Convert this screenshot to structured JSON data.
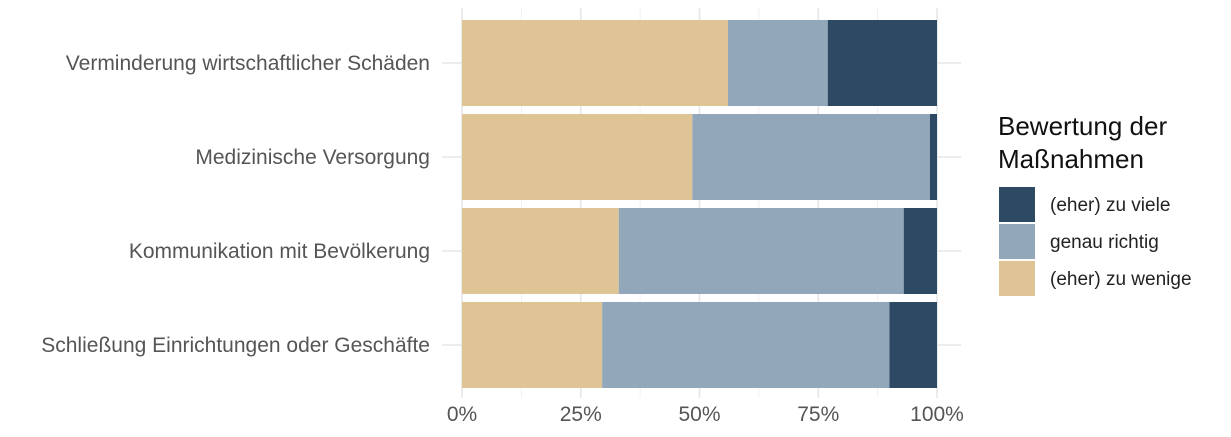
{
  "chart_data": {
    "type": "bar",
    "orientation": "horizontal",
    "stacked": true,
    "categories": [
      "Verminderung wirtschaftlicher Schäden",
      "Medizinische Versorgung",
      "Kommunikation mit Bevölkerung",
      "Schließung Einrichtungen oder Geschäfte"
    ],
    "series": [
      {
        "name": "(eher) zu wenige",
        "color": "#dfc596",
        "values": [
          0.56,
          0.485,
          0.33,
          0.295
        ]
      },
      {
        "name": "genau richtig",
        "color": "#93a7ba",
        "values": [
          0.21,
          0.5,
          0.6,
          0.605
        ]
      },
      {
        "name": "(eher) zu viele",
        "color": "#2e4963",
        "values": [
          0.23,
          0.015,
          0.07,
          0.1
        ]
      }
    ],
    "x_ticks": [
      "0%",
      "25%",
      "50%",
      "75%",
      "100%"
    ],
    "xlim": [
      0,
      1
    ],
    "legend": {
      "title_lines": [
        "Bewertung der",
        "Maßnahmen"
      ],
      "order": [
        "(eher) zu viele",
        "genau richtig",
        "(eher) zu wenige"
      ],
      "position": "right"
    },
    "grid": true
  }
}
